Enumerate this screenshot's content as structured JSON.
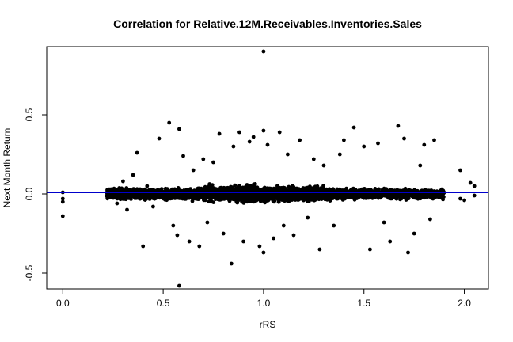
{
  "chart_data": {
    "type": "scatter",
    "title": "Correlation for Relative.12M.Receivables.Inventories.Sales",
    "xlabel": "rRS",
    "ylabel": "Next Month Return",
    "xlim": [
      -0.08,
      2.12
    ],
    "ylim": [
      -0.6,
      0.93
    ],
    "x_ticks": [
      0.0,
      0.5,
      1.0,
      1.5,
      2.0
    ],
    "x_tick_labels": [
      "0.0",
      "0.5",
      "1.0",
      "1.5",
      "2.0"
    ],
    "y_ticks": [
      -0.5,
      0.0,
      0.5
    ],
    "y_tick_labels": [
      "-0.5",
      "0.0",
      "0.5"
    ],
    "grid": false,
    "legend": "none",
    "point_color": "#000000",
    "reference_line": {
      "orientation": "horizontal",
      "y": 0.01,
      "color": "#0000cc"
    },
    "series": [
      {
        "values_note": "Representative points read from the dense cloud; bulk cloud centered near y=0 between x=0.22 and x=1.9",
        "points": [
          [
            0.0,
            0.01
          ],
          [
            0.0,
            -0.03
          ],
          [
            0.0,
            -0.05
          ],
          [
            0.0,
            -0.14
          ],
          [
            0.23,
            -0.02
          ],
          [
            0.25,
            0.03
          ],
          [
            0.27,
            -0.06
          ],
          [
            0.3,
            0.08
          ],
          [
            0.32,
            -0.1
          ],
          [
            0.35,
            0.12
          ],
          [
            0.37,
            0.26
          ],
          [
            0.4,
            -0.33
          ],
          [
            0.42,
            0.05
          ],
          [
            0.45,
            -0.08
          ],
          [
            0.48,
            0.35
          ],
          [
            0.53,
            0.45
          ],
          [
            0.55,
            -0.2
          ],
          [
            0.57,
            -0.26
          ],
          [
            0.58,
            0.41
          ],
          [
            0.58,
            -0.58
          ],
          [
            0.6,
            0.24
          ],
          [
            0.63,
            -0.3
          ],
          [
            0.65,
            0.15
          ],
          [
            0.68,
            -0.33
          ],
          [
            0.7,
            0.22
          ],
          [
            0.72,
            -0.18
          ],
          [
            0.75,
            0.2
          ],
          [
            0.78,
            0.38
          ],
          [
            0.8,
            -0.25
          ],
          [
            0.84,
            -0.44
          ],
          [
            0.85,
            0.3
          ],
          [
            0.88,
            0.39
          ],
          [
            0.9,
            -0.3
          ],
          [
            0.93,
            0.33
          ],
          [
            0.95,
            0.36
          ],
          [
            0.98,
            -0.33
          ],
          [
            1.0,
            0.4
          ],
          [
            1.0,
            -0.37
          ],
          [
            1.0,
            0.9
          ],
          [
            1.02,
            0.31
          ],
          [
            1.05,
            -0.28
          ],
          [
            1.08,
            0.39
          ],
          [
            1.1,
            -0.2
          ],
          [
            1.12,
            0.25
          ],
          [
            1.15,
            -0.26
          ],
          [
            1.18,
            0.34
          ],
          [
            1.22,
            -0.15
          ],
          [
            1.25,
            0.22
          ],
          [
            1.28,
            -0.35
          ],
          [
            1.3,
            0.18
          ],
          [
            1.35,
            -0.2
          ],
          [
            1.38,
            0.25
          ],
          [
            1.4,
            0.34
          ],
          [
            1.45,
            0.42
          ],
          [
            1.5,
            0.3
          ],
          [
            1.53,
            -0.35
          ],
          [
            1.57,
            0.32
          ],
          [
            1.6,
            -0.18
          ],
          [
            1.63,
            -0.3
          ],
          [
            1.67,
            0.43
          ],
          [
            1.7,
            0.35
          ],
          [
            1.72,
            -0.37
          ],
          [
            1.75,
            -0.25
          ],
          [
            1.78,
            0.18
          ],
          [
            1.8,
            0.31
          ],
          [
            1.83,
            -0.16
          ],
          [
            1.85,
            0.34
          ],
          [
            1.88,
            0.02
          ],
          [
            1.98,
            -0.03
          ],
          [
            1.98,
            0.15
          ],
          [
            2.0,
            -0.04
          ],
          [
            2.03,
            0.07
          ],
          [
            2.05,
            -0.01
          ],
          [
            2.05,
            0.05
          ]
        ]
      }
    ]
  }
}
